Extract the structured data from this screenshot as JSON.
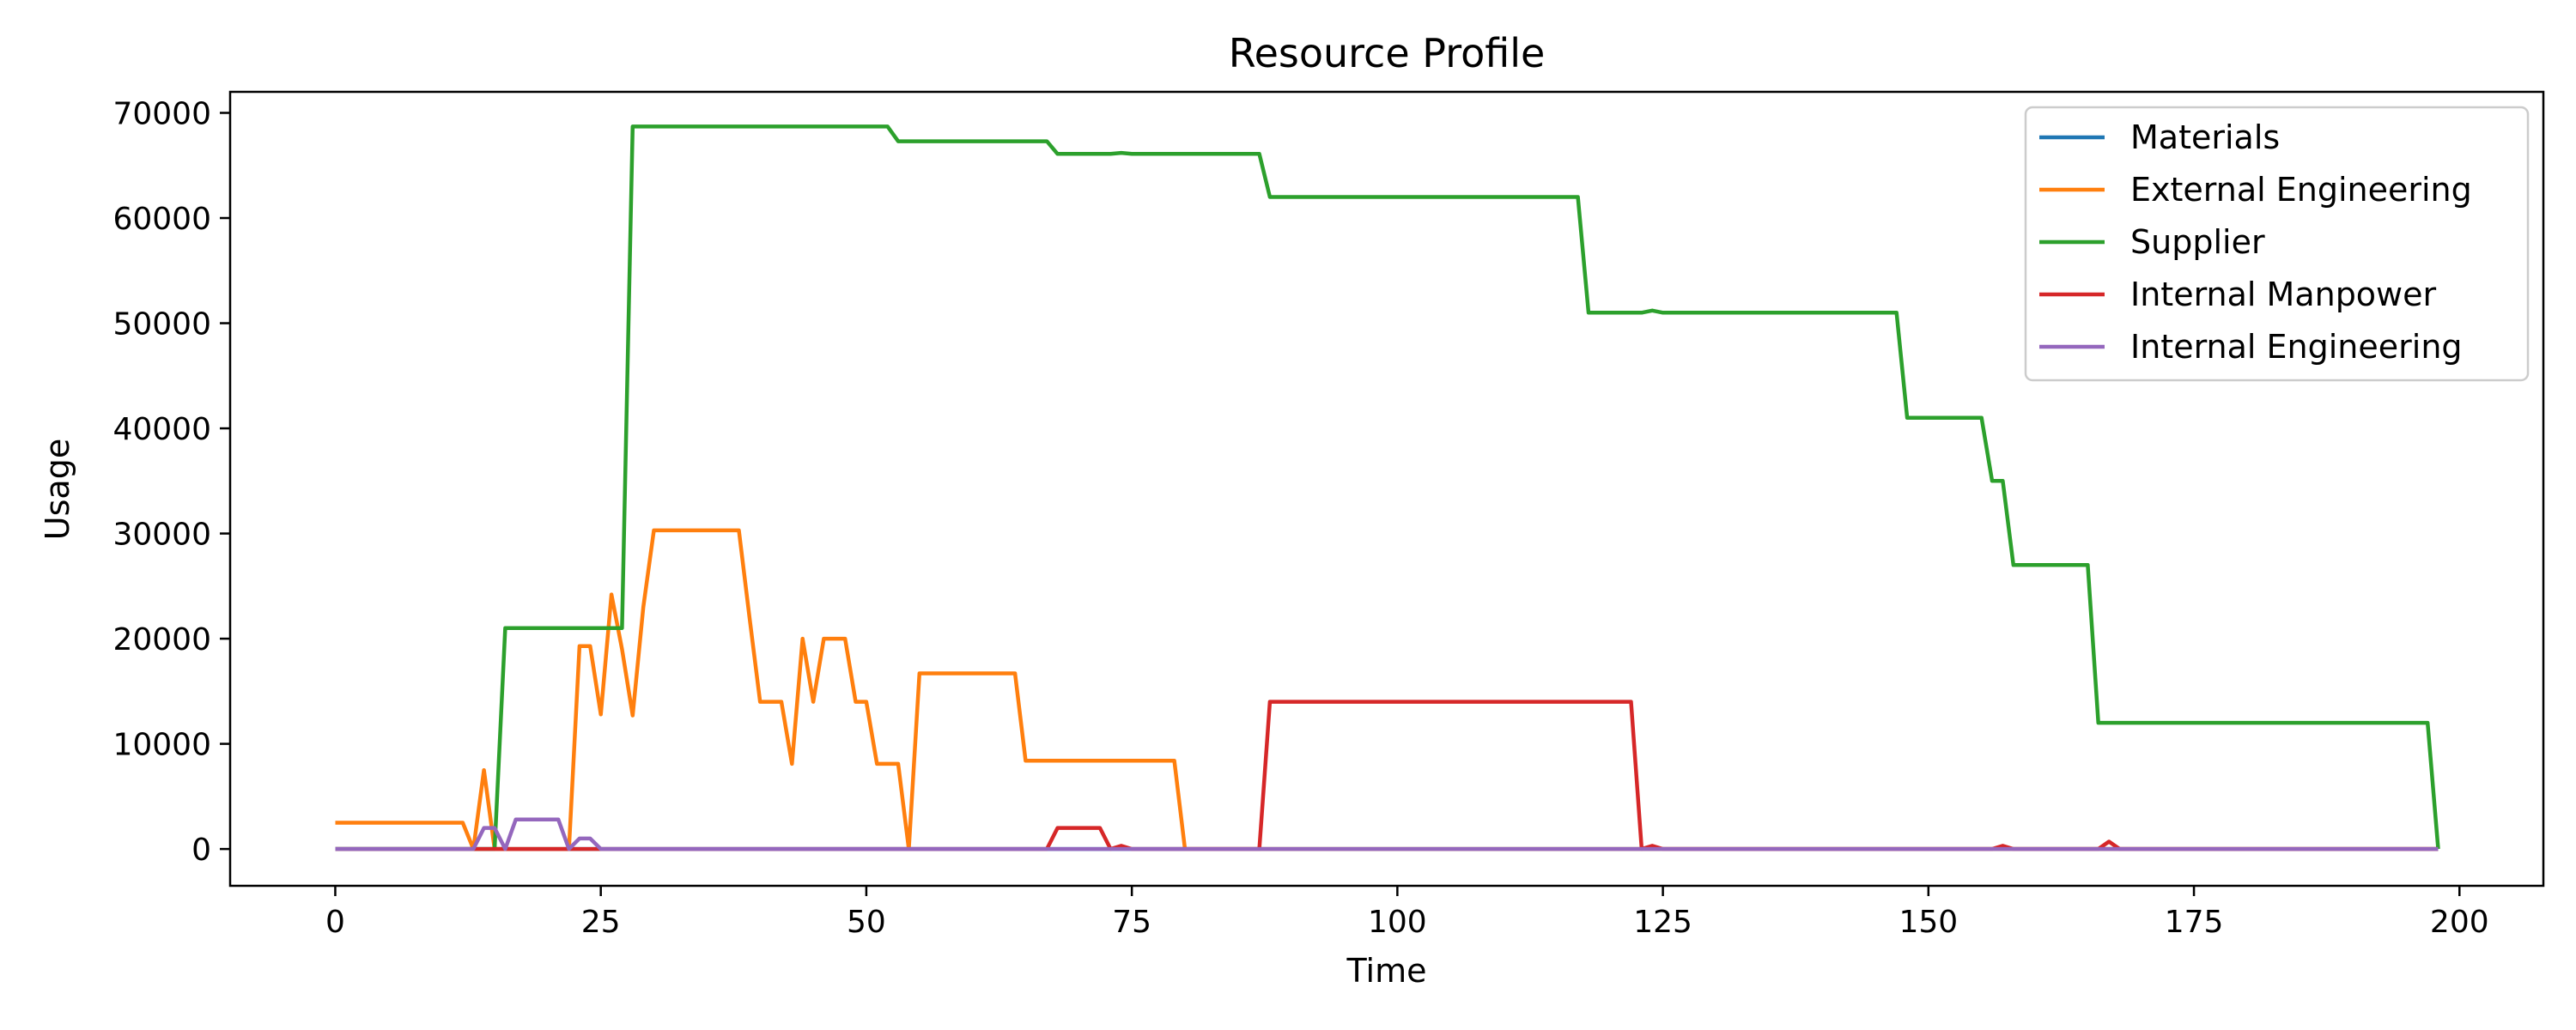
{
  "chart_data": {
    "type": "line",
    "title": "Resource Profile",
    "xlabel": "Time",
    "ylabel": "Usage",
    "xlim": [
      -9.9,
      207.9
    ],
    "ylim": [
      -3500,
      72000
    ],
    "xticks": [
      0,
      25,
      50,
      75,
      100,
      125,
      150,
      175,
      200
    ],
    "yticks": [
      0,
      10000,
      20000,
      30000,
      40000,
      50000,
      60000,
      70000
    ],
    "grid": false,
    "legend_position": "top-right",
    "series": [
      {
        "name": "Materials",
        "color": "#1f77b4",
        "points": [
          [
            0,
            0
          ],
          [
            198,
            0
          ]
        ]
      },
      {
        "name": "External Engineering",
        "color": "#ff7f0e",
        "points": [
          [
            0,
            2500
          ],
          [
            12,
            2500
          ],
          [
            13,
            0
          ],
          [
            14,
            7500
          ],
          [
            15,
            0
          ],
          [
            22,
            0
          ],
          [
            23,
            19300
          ],
          [
            24,
            19300
          ],
          [
            25,
            12800
          ],
          [
            26,
            24200
          ],
          [
            27,
            19000
          ],
          [
            28,
            12700
          ],
          [
            29,
            23000
          ],
          [
            30,
            30300
          ],
          [
            38,
            30300
          ],
          [
            39,
            22000
          ],
          [
            40,
            14000
          ],
          [
            42,
            14000
          ],
          [
            43,
            8100
          ],
          [
            44,
            20000
          ],
          [
            45,
            14000
          ],
          [
            46,
            20000
          ],
          [
            48,
            20000
          ],
          [
            49,
            14000
          ],
          [
            50,
            14000
          ],
          [
            51,
            8100
          ],
          [
            53,
            8100
          ],
          [
            54,
            0
          ],
          [
            55,
            16700
          ],
          [
            64,
            16700
          ],
          [
            65,
            8400
          ],
          [
            79,
            8400
          ],
          [
            80,
            0
          ],
          [
            198,
            0
          ]
        ]
      },
      {
        "name": "Supplier",
        "color": "#2ca02c",
        "points": [
          [
            0,
            0
          ],
          [
            15,
            0
          ],
          [
            16,
            21000
          ],
          [
            27,
            21000
          ],
          [
            28,
            68700
          ],
          [
            52,
            68700
          ],
          [
            53,
            67300
          ],
          [
            67,
            67300
          ],
          [
            68,
            66100
          ],
          [
            73,
            66100
          ],
          [
            74,
            66200
          ],
          [
            75,
            66100
          ],
          [
            87,
            66100
          ],
          [
            88,
            62000
          ],
          [
            117,
            62000
          ],
          [
            118,
            51000
          ],
          [
            123,
            51000
          ],
          [
            124,
            51200
          ],
          [
            125,
            51000
          ],
          [
            147,
            51000
          ],
          [
            148,
            41000
          ],
          [
            155,
            41000
          ],
          [
            156,
            35000
          ],
          [
            157,
            35000
          ],
          [
            158,
            27000
          ],
          [
            165,
            27000
          ],
          [
            166,
            12000
          ],
          [
            197,
            12000
          ],
          [
            198,
            0
          ]
        ]
      },
      {
        "name": "Internal Manpower",
        "color": "#d62728",
        "points": [
          [
            0,
            0
          ],
          [
            67,
            0
          ],
          [
            68,
            2000
          ],
          [
            72,
            2000
          ],
          [
            73,
            0
          ],
          [
            74,
            300
          ],
          [
            75,
            0
          ],
          [
            87,
            0
          ],
          [
            88,
            14000
          ],
          [
            122,
            14000
          ],
          [
            123,
            0
          ],
          [
            124,
            300
          ],
          [
            125,
            0
          ],
          [
            156,
            0
          ],
          [
            157,
            300
          ],
          [
            158,
            0
          ],
          [
            166,
            0
          ],
          [
            167,
            700
          ],
          [
            168,
            0
          ],
          [
            198,
            0
          ]
        ]
      },
      {
        "name": "Internal Engineering",
        "color": "#9467bd",
        "points": [
          [
            0,
            0
          ],
          [
            13,
            0
          ],
          [
            14,
            2000
          ],
          [
            15,
            2000
          ],
          [
            16,
            0
          ],
          [
            17,
            2800
          ],
          [
            21,
            2800
          ],
          [
            22,
            0
          ],
          [
            23,
            1000
          ],
          [
            24,
            1000
          ],
          [
            25,
            0
          ],
          [
            198,
            0
          ]
        ]
      }
    ]
  }
}
